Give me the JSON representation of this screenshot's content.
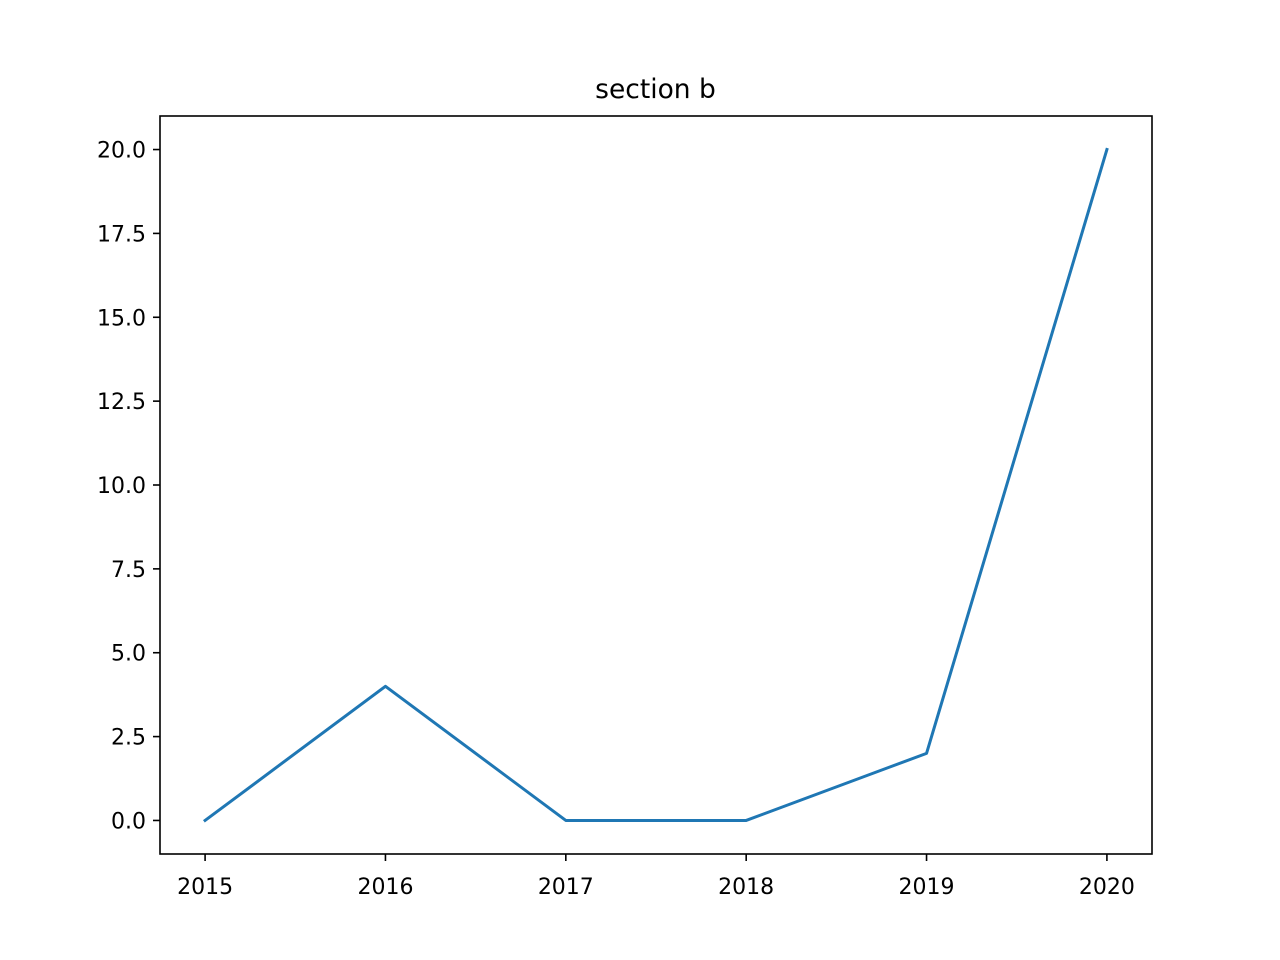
{
  "chart_data": {
    "type": "line",
    "title": "section b",
    "xlabel": "",
    "ylabel": "",
    "x": [
      2015,
      2016,
      2017,
      2018,
      2019,
      2020
    ],
    "series": [
      {
        "values": [
          0,
          4,
          0,
          0,
          2,
          20
        ],
        "color": "#1f77b4"
      }
    ],
    "xticks": [
      "2015",
      "2016",
      "2017",
      "2018",
      "2019",
      "2020"
    ],
    "yticks": [
      "0.0",
      "2.5",
      "5.0",
      "7.5",
      "10.0",
      "12.5",
      "15.0",
      "17.5",
      "20.0"
    ],
    "xlim": [
      2014.75,
      2020.25
    ],
    "ylim": [
      -1.0,
      21.0
    ],
    "grid": false,
    "legend": "none"
  }
}
